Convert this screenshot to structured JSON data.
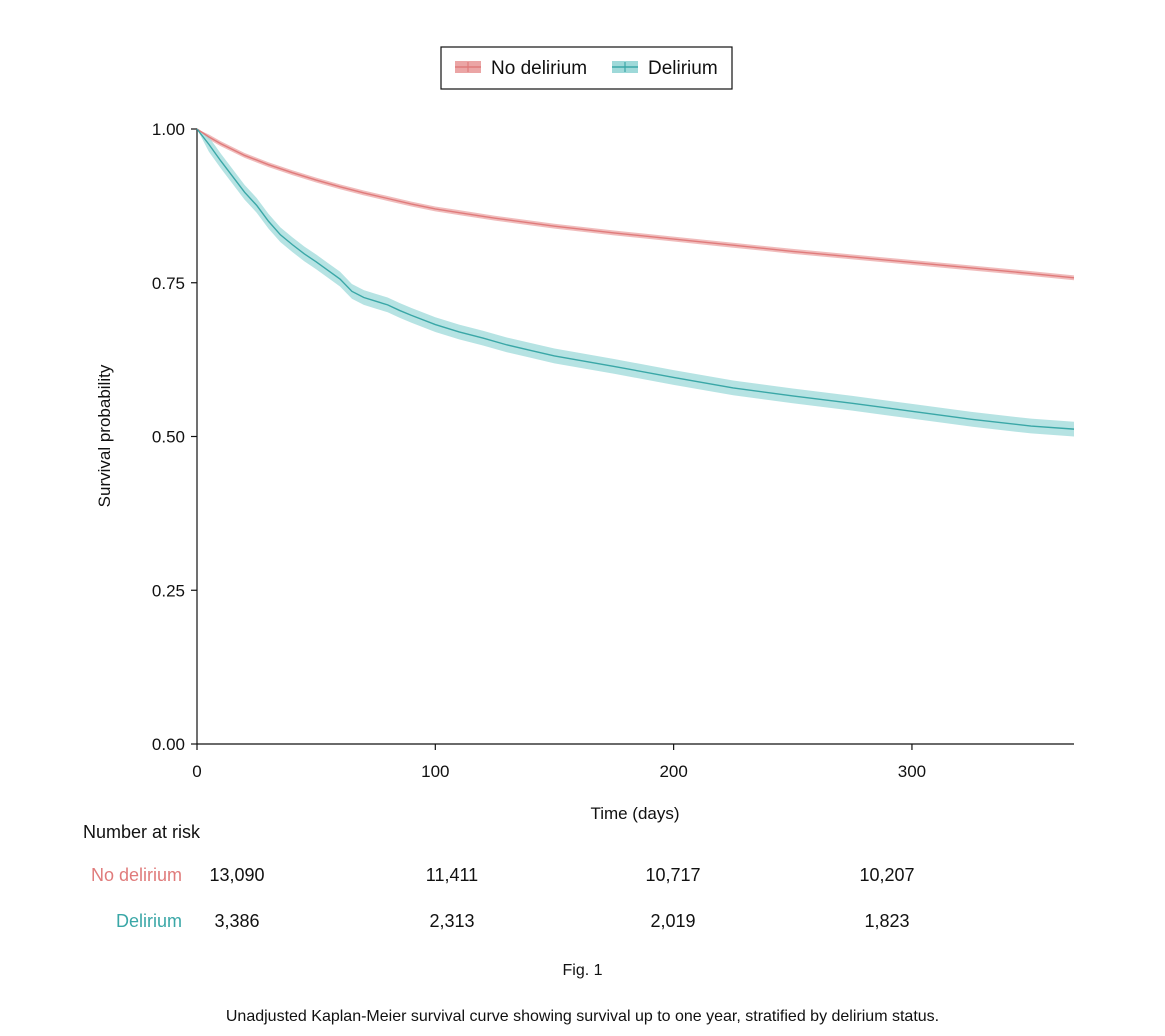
{
  "chart_data": {
    "type": "line",
    "subtype": "kaplan-meier",
    "xlabel": "Time (days)",
    "ylabel": "Survival probability",
    "xlim": [
      0,
      368
    ],
    "ylim": [
      0,
      1
    ],
    "xticks": [
      0,
      100,
      200,
      300
    ],
    "yticks": [
      0.0,
      0.25,
      0.5,
      0.75,
      1.0
    ],
    "ytick_labels": [
      "0.00",
      "0.25",
      "0.50",
      "0.75",
      "1.00"
    ],
    "xtick_labels": [
      "0",
      "100",
      "200",
      "300"
    ],
    "legend": {
      "placement": "top-center",
      "entries": [
        "No delirium",
        "Delirium"
      ]
    },
    "series": [
      {
        "name": "No delirium",
        "color": "#e07b7b",
        "fill": "#eba5a5",
        "x": [
          0,
          5,
          10,
          20,
          30,
          40,
          50,
          60,
          70,
          80,
          90,
          100,
          110,
          125,
          150,
          175,
          200,
          225,
          250,
          275,
          300,
          325,
          350,
          368
        ],
        "y": [
          1.0,
          0.987,
          0.976,
          0.957,
          0.942,
          0.929,
          0.917,
          0.906,
          0.896,
          0.887,
          0.878,
          0.87,
          0.864,
          0.855,
          0.842,
          0.831,
          0.821,
          0.811,
          0.801,
          0.792,
          0.783,
          0.774,
          0.765,
          0.758
        ],
        "ci_halfwidth": 0.004
      },
      {
        "name": "Delirium",
        "color": "#3aa7a7",
        "fill": "#9ed9d9",
        "x": [
          0,
          5,
          10,
          20,
          25,
          30,
          35,
          40,
          45,
          50,
          55,
          60,
          65,
          70,
          75,
          80,
          85,
          90,
          100,
          110,
          120,
          130,
          140,
          150,
          175,
          200,
          225,
          250,
          275,
          300,
          325,
          350,
          368
        ],
        "y": [
          1.0,
          0.975,
          0.948,
          0.897,
          0.876,
          0.85,
          0.828,
          0.812,
          0.797,
          0.784,
          0.77,
          0.756,
          0.736,
          0.726,
          0.72,
          0.714,
          0.705,
          0.697,
          0.682,
          0.67,
          0.66,
          0.649,
          0.64,
          0.631,
          0.614,
          0.596,
          0.579,
          0.566,
          0.554,
          0.541,
          0.528,
          0.517,
          0.512
        ],
        "ci_halfwidth": 0.012
      }
    ]
  },
  "risk_table": {
    "title": "Number at risk",
    "rows": [
      {
        "label": "No delirium",
        "color": "#e07b7b",
        "values": [
          "13,090",
          "11,411",
          "10,717",
          "10,207"
        ]
      },
      {
        "label": "Delirium",
        "color": "#3aa7a7",
        "values": [
          "3,386",
          "2,313",
          "2,019",
          "1,823"
        ]
      }
    ]
  },
  "figure_label": "Fig. 1",
  "caption": "Unadjusted Kaplan-Meier survival curve showing survival up to one year, stratified by delirium status."
}
